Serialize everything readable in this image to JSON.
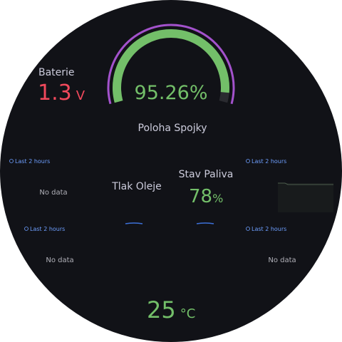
{
  "battery": {
    "title": "Baterie",
    "value": 1.3,
    "unit": "V"
  },
  "clutch": {
    "value": 95.26,
    "unit": "%",
    "title": "Poloha Spojky"
  },
  "panels": [
    {
      "time": "Last 2 hours",
      "message": "No data"
    },
    {
      "time": "Last 2 hours"
    },
    {
      "time": "Last 2 hours",
      "message": "No data"
    },
    {
      "time": "Last 2 hours",
      "message": "No data"
    }
  ],
  "oil": {
    "title": "Tlak Oleje"
  },
  "fuel": {
    "title": "Stav Paliva",
    "value": 78,
    "unit": "%"
  },
  "temp": {
    "value": 25,
    "unit": "°C"
  }
}
